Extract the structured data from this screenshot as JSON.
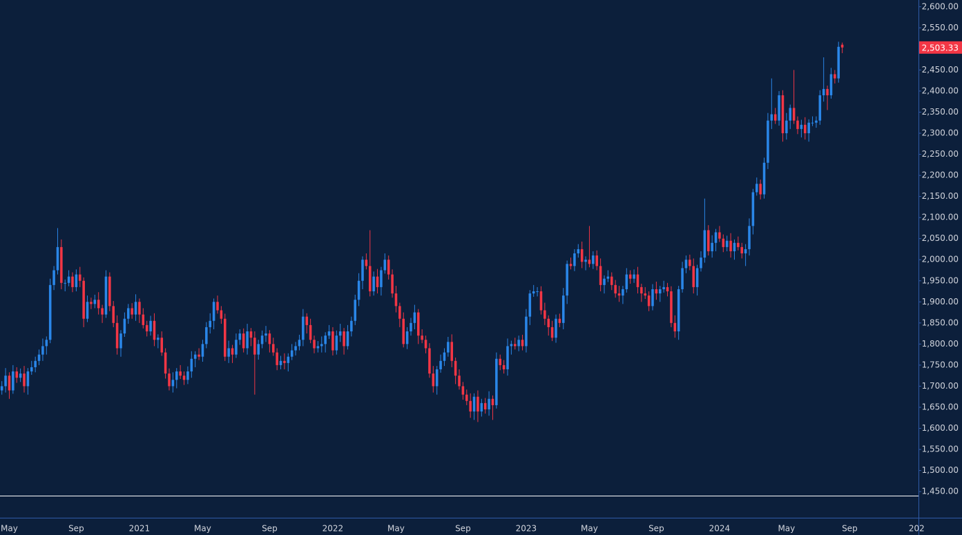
{
  "chart_data": {
    "type": "candlestick",
    "categories": [
      null,
      null,
      "May",
      null,
      null,
      null,
      null,
      null,
      null,
      null,
      null,
      null,
      null,
      null,
      null,
      null,
      null,
      null,
      null,
      null,
      "Sep",
      null,
      null,
      null,
      null,
      null,
      null,
      null,
      null,
      null,
      null,
      null,
      null,
      null,
      null,
      null,
      null,
      "2021",
      null,
      null,
      null,
      null,
      null,
      null,
      null,
      null,
      null,
      null,
      null,
      null,
      null,
      null,
      null,
      null,
      "May",
      null,
      null,
      null,
      null,
      null,
      null,
      null,
      null,
      null,
      null,
      null,
      null,
      null,
      null,
      null,
      null,
      null,
      "Sep",
      null,
      null,
      null,
      null,
      null,
      null,
      null,
      null,
      null,
      null,
      null,
      null,
      null,
      null,
      null,
      null,
      "2022",
      null,
      null,
      null,
      null,
      null,
      null,
      null,
      null,
      null,
      null,
      null,
      null,
      null,
      null,
      null,
      null,
      "May",
      null,
      null,
      null,
      null,
      null,
      null,
      null,
      null,
      null,
      null,
      null,
      null,
      null,
      null,
      null,
      null,
      null,
      "Sep",
      null,
      null,
      null,
      null,
      null,
      null,
      null,
      null,
      null,
      null,
      null,
      null,
      null,
      null,
      null,
      null,
      "2023",
      null,
      null,
      null,
      null,
      null,
      null,
      null,
      null,
      null,
      null,
      null,
      null,
      null,
      null,
      null,
      null,
      "May",
      null,
      null,
      null,
      null,
      null,
      null,
      null,
      null,
      null,
      null,
      null,
      null,
      null,
      null,
      null,
      null,
      null,
      "Sep",
      null,
      null,
      null,
      null,
      null,
      null,
      null,
      null,
      null,
      null,
      null,
      null,
      null,
      null,
      null,
      null,
      "2024",
      null,
      null,
      null,
      null,
      null,
      null,
      null,
      null,
      null,
      null,
      null,
      null,
      null,
      null,
      null,
      null,
      null,
      "May",
      null,
      null,
      null,
      null,
      null,
      null,
      null,
      null,
      null,
      null,
      null,
      null,
      null,
      null,
      null,
      null,
      "Sep",
      null,
      null,
      null,
      null,
      null,
      null,
      null,
      null,
      null,
      null,
      null,
      null,
      null,
      null,
      null,
      null,
      null,
      "202"
    ],
    "open": [
      1690,
      1700,
      1725,
      1690,
      1735,
      1720,
      1730,
      1700,
      1735,
      1745,
      1760,
      1775,
      1795,
      1810,
      1940,
      1975,
      2030,
      1945,
      1945,
      1960,
      1935,
      1965,
      1950,
      1860,
      1900,
      1895,
      1905,
      1885,
      1870,
      1960,
      1890,
      1850,
      1790,
      1825,
      1860,
      1885,
      1870,
      1900,
      1870,
      1845,
      1830,
      1855,
      1810,
      1815,
      1780,
      1730,
      1700,
      1715,
      1735,
      1725,
      1715,
      1735,
      1765,
      1775,
      1770,
      1800,
      1840,
      1855,
      1900,
      1880,
      1860,
      1770,
      1790,
      1775,
      1810,
      1825,
      1790,
      1830,
      1815,
      1775,
      1800,
      1820,
      1825,
      1800,
      1780,
      1750,
      1760,
      1755,
      1770,
      1785,
      1795,
      1810,
      1865,
      1845,
      1810,
      1790,
      1795,
      1800,
      1820,
      1830,
      1785,
      1820,
      1830,
      1795,
      1830,
      1855,
      1905,
      1950,
      2000,
      1985,
      1925,
      1960,
      1935,
      1975,
      2000,
      1965,
      1920,
      1890,
      1860,
      1800,
      1830,
      1850,
      1875,
      1820,
      1810,
      1790,
      1730,
      1700,
      1740,
      1760,
      1780,
      1805,
      1760,
      1725,
      1700,
      1680,
      1665,
      1640,
      1675,
      1640,
      1660,
      1645,
      1670,
      1655,
      1765,
      1750,
      1740,
      1795,
      1800,
      1795,
      1810,
      1795,
      1865,
      1920,
      1925,
      1925,
      1880,
      1860,
      1840,
      1815,
      1860,
      1850,
      1915,
      1990,
      1985,
      2015,
      2025,
      1995,
      2000,
      1990,
      2010,
      1985,
      1940,
      1955,
      1960,
      1940,
      1920,
      1915,
      1930,
      1965,
      1955,
      1965,
      1935,
      1920,
      1915,
      1890,
      1930,
      1920,
      1930,
      1935,
      1925,
      1850,
      1830,
      1930,
      1980,
      2000,
      1985,
      1935,
      1980,
      2005,
      2070,
      2020,
      2040,
      2065,
      2050,
      2030,
      2045,
      2020,
      2040,
      2030,
      2015,
      2025,
      2080,
      2160,
      2180,
      2155,
      2230,
      2330,
      2345,
      2330,
      2390,
      2300,
      2330,
      2360,
      2330,
      2310,
      2320,
      2300,
      2325,
      2325,
      2330,
      2390,
      2405,
      2390,
      2440,
      2430,
      2510,
      null,
      null,
      null,
      null,
      null,
      null,
      null,
      null,
      null,
      null,
      null,
      null,
      null,
      null,
      null,
      null,
      null,
      null,
      null,
      null
    ],
    "high": [
      1712,
      1743,
      1733,
      1750,
      1745,
      1742,
      1748,
      1743,
      1760,
      1770,
      1787,
      1813,
      1818,
      1955,
      1985,
      2075,
      2048,
      1953,
      1975,
      1970,
      1977,
      1983,
      1958,
      1915,
      1910,
      1917,
      1923,
      1893,
      1975,
      1970,
      1902,
      1868,
      1833,
      1875,
      1895,
      1897,
      1918,
      1908,
      1885,
      1855,
      1867,
      1873,
      1823,
      1830,
      1790,
      1742,
      1733,
      1743,
      1750,
      1735,
      1747,
      1783,
      1783,
      1790,
      1810,
      1852,
      1873,
      1908,
      1915,
      1890,
      1872,
      1808,
      1798,
      1825,
      1835,
      1837,
      1848,
      1838,
      1830,
      1810,
      1832,
      1843,
      1833,
      1815,
      1790,
      1772,
      1778,
      1778,
      1800,
      1805,
      1822,
      1883,
      1873,
      1860,
      1820,
      1807,
      1818,
      1828,
      1845,
      1840,
      1832,
      1848,
      1838,
      1845,
      1865,
      1917,
      1968,
      2008,
      2015,
      2070,
      1972,
      1978,
      1983,
      2015,
      2010,
      1977,
      1938,
      1898,
      1875,
      1840,
      1862,
      1893,
      1883,
      1835,
      1820,
      1802,
      1748,
      1748,
      1775,
      1790,
      1817,
      1823,
      1768,
      1740,
      1710,
      1692,
      1683,
      1683,
      1690,
      1670,
      1672,
      1688,
      1678,
      1780,
      1775,
      1762,
      1813,
      1808,
      1815,
      1820,
      1822,
      1883,
      1928,
      1940,
      1935,
      1937,
      1898,
      1868,
      1855,
      1870,
      1872,
      1933,
      1998,
      2005,
      2025,
      2037,
      2043,
      2008,
      2080,
      2020,
      2022,
      2003,
      1963,
      1975,
      1970,
      1952,
      1938,
      1938,
      1980,
      1975,
      1977,
      1983,
      1943,
      1935,
      1925,
      1942,
      1948,
      1938,
      1950,
      1945,
      1937,
      1868,
      1938,
      1995,
      2010,
      2012,
      2003,
      1988,
      2020,
      2145,
      2082,
      2058,
      2073,
      2080,
      2060,
      2057,
      2063,
      2048,
      2055,
      2040,
      2037,
      2098,
      2168,
      2195,
      2190,
      2242,
      2348,
      2430,
      2360,
      2400,
      2402,
      2348,
      2368,
      2450,
      2340,
      2332,
      2338,
      2333,
      2340,
      2340,
      2402,
      2480,
      2413,
      2455,
      2450,
      2517,
      2515,
      null,
      null,
      null,
      null,
      null,
      null,
      null,
      null,
      null,
      null,
      null,
      null,
      null,
      null,
      null,
      null,
      null,
      null,
      null,
      null
    ],
    "low": [
      1680,
      1685,
      1670,
      1682,
      1708,
      1710,
      1685,
      1680,
      1727,
      1733,
      1750,
      1760,
      1775,
      1802,
      1928,
      1965,
      1930,
      1925,
      1937,
      1923,
      1925,
      1935,
      1840,
      1852,
      1883,
      1885,
      1870,
      1850,
      1862,
      1878,
      1840,
      1775,
      1770,
      1817,
      1848,
      1860,
      1855,
      1850,
      1837,
      1818,
      1820,
      1795,
      1790,
      1772,
      1718,
      1690,
      1685,
      1695,
      1717,
      1703,
      1705,
      1720,
      1745,
      1762,
      1758,
      1790,
      1825,
      1835,
      1872,
      1848,
      1760,
      1755,
      1755,
      1767,
      1798,
      1780,
      1775,
      1795,
      1680,
      1763,
      1790,
      1805,
      1780,
      1772,
      1738,
      1740,
      1740,
      1735,
      1762,
      1773,
      1785,
      1795,
      1825,
      1802,
      1778,
      1780,
      1780,
      1780,
      1812,
      1773,
      1775,
      1805,
      1775,
      1787,
      1818,
      1845,
      1890,
      1930,
      1977,
      1913,
      1915,
      1920,
      1915,
      1967,
      1953,
      1910,
      1875,
      1840,
      1792,
      1788,
      1820,
      1835,
      1800,
      1802,
      1778,
      1720,
      1685,
      1680,
      1732,
      1748,
      1770,
      1745,
      1705,
      1692,
      1668,
      1655,
      1625,
      1620,
      1615,
      1628,
      1635,
      1630,
      1620,
      1647,
      1738,
      1730,
      1725,
      1775,
      1787,
      1783,
      1785,
      1780,
      1845,
      1912,
      1913,
      1870,
      1845,
      1820,
      1807,
      1803,
      1840,
      1835,
      1895,
      1977,
      1973,
      2005,
      1980,
      1975,
      1982,
      1978,
      1975,
      1925,
      1920,
      1947,
      1928,
      1910,
      1900,
      1895,
      1922,
      1943,
      1945,
      1920,
      1900,
      1907,
      1878,
      1880,
      1905,
      1900,
      1922,
      1913,
      1840,
      1815,
      1810,
      1922,
      1968,
      1975,
      1920,
      1915,
      1972,
      1993,
      2010,
      2005,
      2020,
      2042,
      2018,
      2020,
      2005,
      2000,
      2022,
      2003,
      1985,
      2010,
      2060,
      2152,
      2143,
      2145,
      2215,
      2310,
      2322,
      2318,
      2280,
      2285,
      2310,
      2322,
      2298,
      2290,
      2285,
      2280,
      2317,
      2313,
      2320,
      2375,
      2355,
      2382,
      2418,
      2420,
      2490,
      null,
      null,
      null,
      null,
      null,
      null,
      null,
      null,
      null,
      null,
      null,
      null,
      null,
      null,
      null,
      null,
      null,
      null,
      null,
      null
    ],
    "close": [
      1700,
      1725,
      1690,
      1735,
      1720,
      1730,
      1700,
      1735,
      1745,
      1760,
      1775,
      1795,
      1810,
      1940,
      1975,
      2030,
      1945,
      1945,
      1960,
      1935,
      1965,
      1950,
      1860,
      1900,
      1895,
      1905,
      1885,
      1870,
      1960,
      1890,
      1850,
      1790,
      1825,
      1860,
      1885,
      1870,
      1900,
      1870,
      1845,
      1830,
      1855,
      1810,
      1815,
      1780,
      1730,
      1700,
      1715,
      1735,
      1725,
      1715,
      1735,
      1765,
      1775,
      1770,
      1800,
      1840,
      1855,
      1900,
      1880,
      1860,
      1770,
      1790,
      1775,
      1810,
      1825,
      1790,
      1830,
      1815,
      1775,
      1800,
      1820,
      1825,
      1800,
      1780,
      1750,
      1760,
      1755,
      1770,
      1785,
      1795,
      1810,
      1865,
      1845,
      1810,
      1790,
      1795,
      1800,
      1820,
      1830,
      1785,
      1820,
      1830,
      1795,
      1830,
      1855,
      1905,
      1950,
      2000,
      1985,
      1925,
      1960,
      1935,
      1975,
      2000,
      1965,
      1920,
      1890,
      1860,
      1800,
      1830,
      1850,
      1875,
      1820,
      1810,
      1790,
      1730,
      1700,
      1740,
      1760,
      1780,
      1805,
      1760,
      1725,
      1700,
      1680,
      1665,
      1640,
      1675,
      1640,
      1660,
      1645,
      1670,
      1655,
      1765,
      1750,
      1740,
      1795,
      1800,
      1795,
      1810,
      1795,
      1865,
      1920,
      1925,
      1925,
      1880,
      1860,
      1840,
      1815,
      1860,
      1850,
      1915,
      1990,
      1985,
      2015,
      2025,
      1995,
      2000,
      1990,
      2010,
      1985,
      1940,
      1955,
      1960,
      1940,
      1920,
      1915,
      1930,
      1965,
      1955,
      1965,
      1935,
      1920,
      1915,
      1890,
      1930,
      1920,
      1930,
      1935,
      1925,
      1850,
      1830,
      1930,
      1980,
      2000,
      1985,
      1935,
      1980,
      2005,
      2070,
      2020,
      2040,
      2065,
      2050,
      2030,
      2045,
      2020,
      2040,
      2030,
      2015,
      2025,
      2080,
      2160,
      2180,
      2155,
      2230,
      2330,
      2345,
      2330,
      2390,
      2300,
      2330,
      2360,
      2330,
      2310,
      2320,
      2300,
      2325,
      2325,
      2330,
      2390,
      2405,
      2390,
      2440,
      2430,
      2505,
      2503.33,
      null,
      null,
      null,
      null,
      null,
      null,
      null,
      null,
      null,
      null,
      null,
      null,
      null,
      null,
      null,
      null,
      null,
      null,
      null,
      null
    ],
    "up_color": "#2a86e8",
    "down_color": "#f23645",
    "ylim": [
      1388,
      2616
    ],
    "yticks": [
      {
        "value": 1450,
        "label": "1,450.00"
      },
      {
        "value": 1500,
        "label": "1,500.00"
      },
      {
        "value": 1550,
        "label": "1,550.00"
      },
      {
        "value": 1600,
        "label": "1,600.00"
      },
      {
        "value": 1650,
        "label": "1,650.00"
      },
      {
        "value": 1700,
        "label": "1,700.00"
      },
      {
        "value": 1750,
        "label": "1,750.00"
      },
      {
        "value": 1800,
        "label": "1,800.00"
      },
      {
        "value": 1850,
        "label": "1,850.00"
      },
      {
        "value": 1900,
        "label": "1,900.00"
      },
      {
        "value": 1950,
        "label": "1,950.00"
      },
      {
        "value": 2000,
        "label": "2,000.00"
      },
      {
        "value": 2050,
        "label": "2,050.00"
      },
      {
        "value": 2100,
        "label": "2,100.00"
      },
      {
        "value": 2150,
        "label": "2,150.00"
      },
      {
        "value": 2200,
        "label": "2,200.00"
      },
      {
        "value": 2250,
        "label": "2,250.00"
      },
      {
        "value": 2300,
        "label": "2,300.00"
      },
      {
        "value": 2350,
        "label": "2,350.00"
      },
      {
        "value": 2400,
        "label": "2,400.00"
      },
      {
        "value": 2450,
        "label": "2,450.00"
      },
      {
        "value": 2500,
        "label": "2,500.00"
      },
      {
        "value": 2550,
        "label": "2,550.00"
      },
      {
        "value": 2600,
        "label": "2,600.00"
      }
    ],
    "grid": false,
    "hline": 1440,
    "hline_color": "#ffffff",
    "last_price": {
      "value": 2503.33,
      "label": "2,503.33"
    },
    "last_price_color": "#f23645"
  }
}
